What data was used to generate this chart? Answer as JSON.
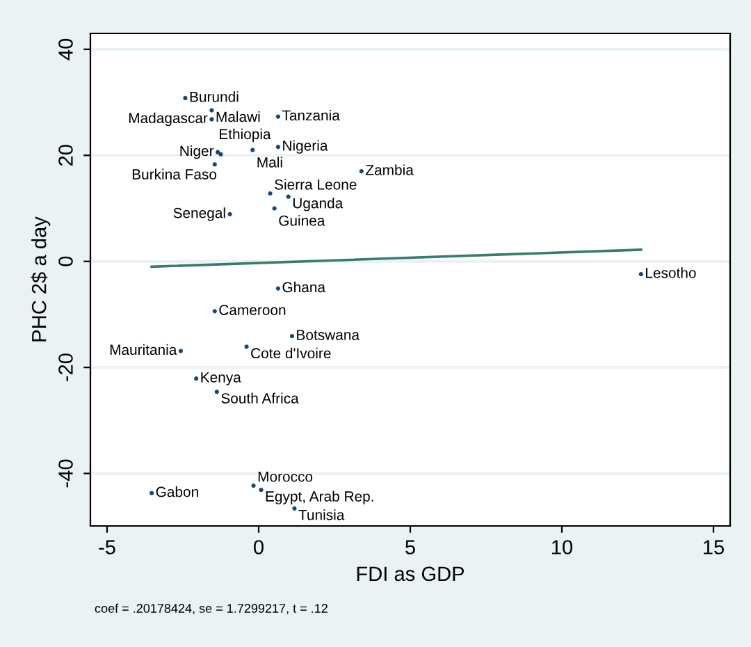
{
  "chart_data": {
    "type": "scatter",
    "xlabel": "FDI as GDP",
    "ylabel": "PHC 2$ a day",
    "xlim": [
      -5.55,
      15.55
    ],
    "ylim": [
      -49.9,
      43
    ],
    "xticks": [
      -5,
      0,
      5,
      10,
      15
    ],
    "yticks": [
      -40,
      -20,
      0,
      20,
      40
    ],
    "grid": "y",
    "series": [
      {
        "marker": "circle",
        "color": "#1a476f",
        "x": [
          -2.42,
          -1.55,
          -1.55,
          0.64,
          0.64,
          -1.35,
          -0.2,
          -1.25,
          -1.45,
          3.39,
          0.38,
          0.98,
          0.52,
          -0.95,
          0.64,
          -1.45,
          1.1,
          -0.4,
          -2.57,
          -2.06,
          -1.38,
          -3.53,
          -0.17,
          0.08,
          1.18,
          12.61
        ],
        "values": [
          30.8,
          28.5,
          26.8,
          27.3,
          21.6,
          20.6,
          21.0,
          20.2,
          18.3,
          17.0,
          12.8,
          12.2,
          10.0,
          8.9,
          -5.1,
          -9.4,
          -14.1,
          -16.1,
          -16.9,
          -22.1,
          -24.6,
          -43.7,
          -42.3,
          -43.1,
          -46.6,
          -2.4
        ]
      },
      {
        "type": "line",
        "marker": "none",
        "color": "#3b7a6e",
        "x": [
          -3.53,
          12.61
        ],
        "values": [
          -1.0,
          2.2
        ]
      }
    ],
    "annotations": [
      {
        "text": "Burundi",
        "x": -2.42,
        "y": 30.8
      },
      {
        "text": "Malawi",
        "x": -1.55,
        "y": 28.5
      },
      {
        "text": "Madagascar",
        "x": -1.55,
        "y": 26.8
      },
      {
        "text": "Tanzania",
        "x": 0.64,
        "y": 27.3
      },
      {
        "text": "Nigeria",
        "x": 0.64,
        "y": 21.6
      },
      {
        "text": "Niger",
        "x": -1.35,
        "y": 20.6
      },
      {
        "text": "Mali",
        "x": -0.2,
        "y": 21.0
      },
      {
        "text": "Burkina Faso",
        "x": -1.25,
        "y": 20.2
      },
      {
        "text": "Ethiopia",
        "x": -1.45,
        "y": 18.3
      },
      {
        "text": "Zambia",
        "x": 3.39,
        "y": 17.0
      },
      {
        "text": "Sierra Leone",
        "x": 0.38,
        "y": 12.8
      },
      {
        "text": "Uganda",
        "x": 0.98,
        "y": 12.2
      },
      {
        "text": "Guinea",
        "x": 0.52,
        "y": 10.0
      },
      {
        "text": "Senegal",
        "x": -0.95,
        "y": 8.9
      },
      {
        "text": "Ghana",
        "x": 0.64,
        "y": -5.1
      },
      {
        "text": "Cameroon",
        "x": -1.45,
        "y": -9.4
      },
      {
        "text": "Botswana",
        "x": 1.1,
        "y": -14.1
      },
      {
        "text": "Cote d'Ivoire",
        "x": -0.4,
        "y": -16.1
      },
      {
        "text": "Mauritania",
        "x": -2.57,
        "y": -16.9
      },
      {
        "text": "Kenya",
        "x": -2.06,
        "y": -22.1
      },
      {
        "text": "South Africa",
        "x": -1.38,
        "y": -24.6
      },
      {
        "text": "Gabon",
        "x": -3.53,
        "y": -43.7
      },
      {
        "text": "Morocco",
        "x": -0.17,
        "y": -42.3
      },
      {
        "text": "Egypt, Arab Rep.",
        "x": 0.08,
        "y": -43.1
      },
      {
        "text": "Tunisia",
        "x": 1.18,
        "y": -46.6
      },
      {
        "text": "Lesotho",
        "x": 12.61,
        "y": -2.4
      },
      "coef = .20178424, se = 1.7299217, t = .12"
    ]
  }
}
